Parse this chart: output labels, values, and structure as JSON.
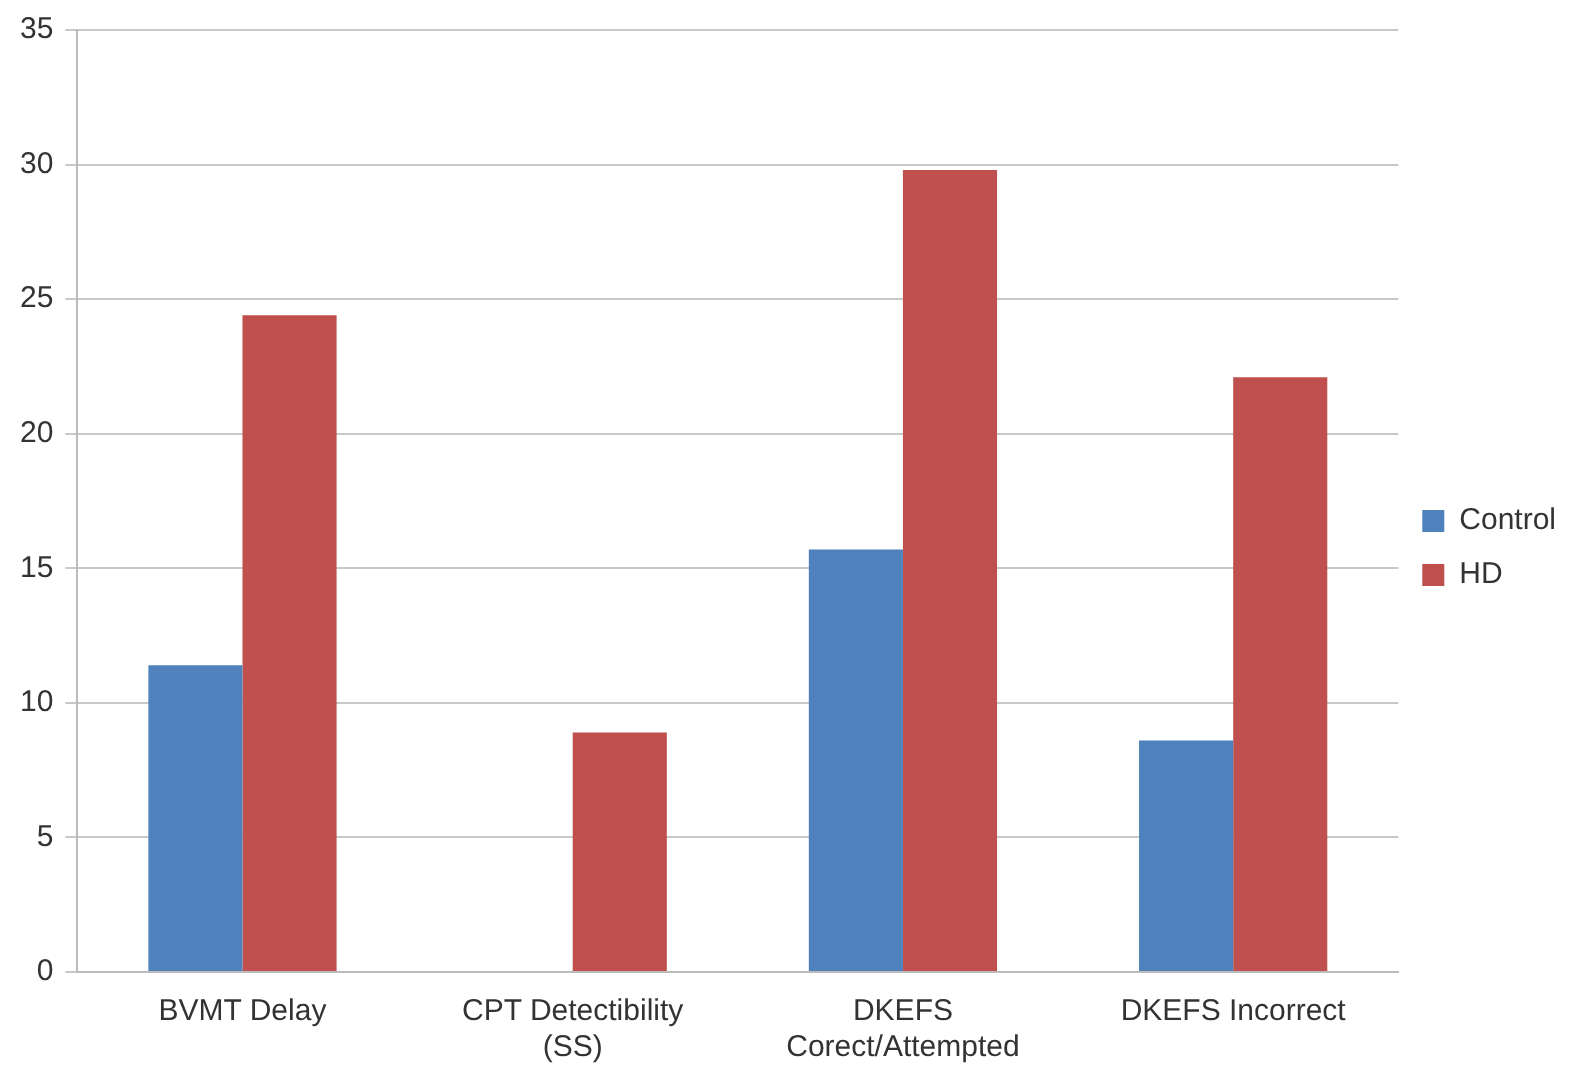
{
  "chart_data": {
    "type": "bar",
    "categories": [
      "BVMT Delay",
      "CPT Detectibility (SS)",
      "DKEFS Corect/Attempted",
      "DKEFS Incorrect"
    ],
    "series": [
      {
        "name": "Control",
        "color": "#4f81bd",
        "values": [
          11.4,
          null,
          15.7,
          8.6
        ]
      },
      {
        "name": "HD",
        "color": "#c0504d",
        "values": [
          24.4,
          8.9,
          29.8,
          22.1
        ]
      }
    ],
    "ylim": [
      0,
      35
    ],
    "yticks": [
      0,
      5,
      10,
      15,
      20,
      25,
      30,
      35
    ],
    "grid": "y",
    "legend": "right"
  }
}
